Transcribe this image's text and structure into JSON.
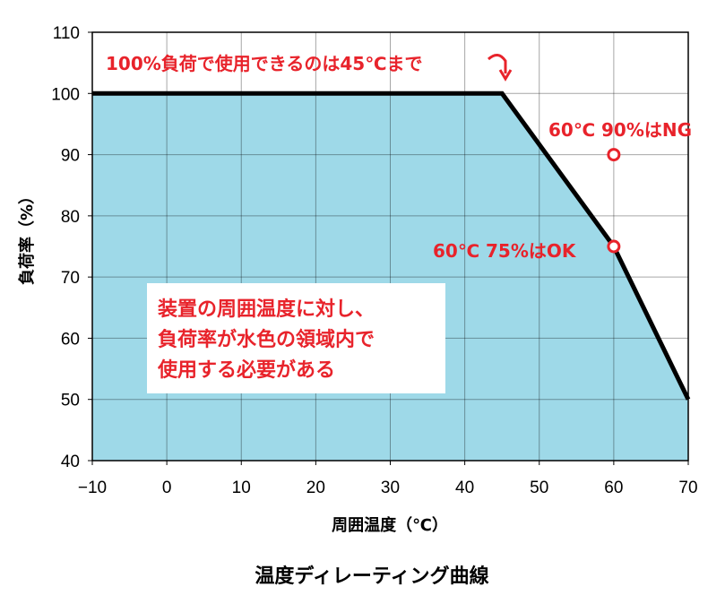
{
  "chart_data": {
    "type": "area",
    "title": "温度ディレーティング曲線",
    "xlabel": "周囲温度（℃）",
    "ylabel": "負荷率（%）",
    "xlim": [
      -10,
      70
    ],
    "ylim": [
      40,
      110
    ],
    "x_ticks": [
      -10,
      0,
      10,
      20,
      30,
      40,
      50,
      60,
      70
    ],
    "y_ticks": [
      40,
      50,
      60,
      70,
      80,
      90,
      100,
      110
    ],
    "x_tick_labels": [
      "−10",
      "0",
      "10",
      "20",
      "30",
      "40",
      "50",
      "60",
      "70"
    ],
    "y_tick_labels": [
      "40",
      "50",
      "60",
      "70",
      "80",
      "90",
      "100",
      "110"
    ],
    "grid": true,
    "series": [
      {
        "x": [
          -10,
          45,
          60,
          70
        ],
        "y": [
          100,
          100,
          75,
          50
        ],
        "fill_color": "#9ed9e8",
        "line_color": "#000000"
      }
    ],
    "points": [
      {
        "x": 60,
        "y": 90,
        "label": "60℃ 90%はNG"
      },
      {
        "x": 60,
        "y": 75,
        "label": "60℃ 75%はOK"
      }
    ],
    "annotations": {
      "top_label": "100%負荷で使用できるのは45℃まで",
      "note_lines": [
        "装置の周囲温度に対し、",
        "負荷率が水色の領域内で",
        "使用する必要がある"
      ]
    },
    "colors": {
      "fill": "#9ed9e8",
      "line": "#000000",
      "annotation": "#e8232b",
      "grid": "#000000"
    }
  }
}
